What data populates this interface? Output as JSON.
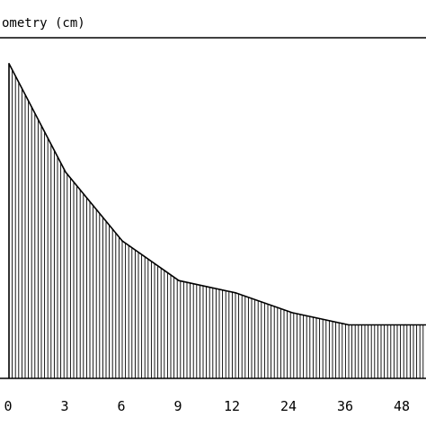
{
  "chart_data": {
    "type": "area",
    "title": "ometry (cm)",
    "xlabel": "",
    "ylabel": "",
    "categories": [
      "0",
      "3",
      "6",
      "9",
      "12",
      "24",
      "36",
      "48"
    ],
    "x": [
      0,
      3,
      6,
      9,
      12,
      24,
      36,
      48
    ],
    "values": [
      10.3,
      6.75,
      4.5,
      3.2,
      2.8,
      2.15,
      1.75,
      1.75
    ],
    "ylim": [
      0,
      11.5
    ],
    "grid": false,
    "fill": "vertical-hatch",
    "colors": {
      "line": "#000000",
      "background": "#ffffff"
    }
  }
}
